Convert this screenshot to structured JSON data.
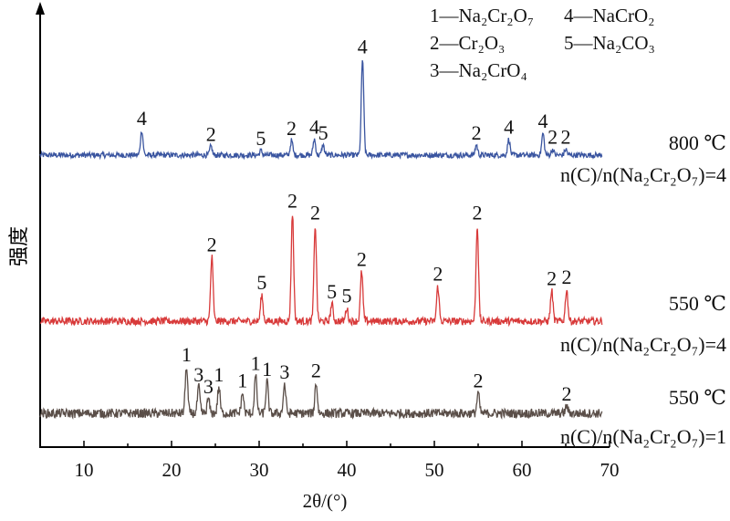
{
  "chart_data": {
    "type": "line",
    "title": "",
    "xlabel": "2θ/(°)",
    "ylabel": "强度",
    "xlim": [
      5,
      70
    ],
    "xticks": [
      "10",
      "20",
      "30",
      "40",
      "50",
      "60",
      "70"
    ],
    "grid": false,
    "legend_position": "top-right",
    "legend": [
      {
        "id": "1",
        "name": "Na₂Cr₂O₇"
      },
      {
        "id": "2",
        "name": "Cr₂O₃"
      },
      {
        "id": "3",
        "name": "Na₂CrO₄"
      },
      {
        "id": "4",
        "name": "NaCrO₂"
      },
      {
        "id": "5",
        "name": "Na₂CO₃"
      }
    ],
    "series": [
      {
        "name": "800 ℃ n(C)/n(Na₂Cr₂O₇)=4",
        "label_temp": "800 ℃",
        "label_ratio": "n(C)/n(Na₂Cr₂O₇)=4",
        "color": "#3a55a0",
        "peaks": [
          {
            "x": 16.6,
            "h": 0.85,
            "label": "4"
          },
          {
            "x": 24.5,
            "h": 0.3,
            "label": "2"
          },
          {
            "x": 30.2,
            "h": 0.15,
            "label": "5"
          },
          {
            "x": 33.7,
            "h": 0.5,
            "label": "2"
          },
          {
            "x": 36.3,
            "h": 0.55,
            "label": "4"
          },
          {
            "x": 37.3,
            "h": 0.35,
            "label": "5"
          },
          {
            "x": 41.8,
            "h": 3.3,
            "label": "4"
          },
          {
            "x": 54.8,
            "h": 0.35,
            "label": "2"
          },
          {
            "x": 58.5,
            "h": 0.55,
            "label": "4"
          },
          {
            "x": 62.4,
            "h": 0.75,
            "label": "4"
          },
          {
            "x": 63.5,
            "h": 0.2,
            "label": "2"
          },
          {
            "x": 65.0,
            "h": 0.2,
            "label": "2"
          }
        ]
      },
      {
        "name": "550 ℃ n(C)/n(Na₂Cr₂O₇)=4",
        "label_temp": "550 ℃",
        "label_ratio": "n(C)/n(Na₂Cr₂O₇)=4",
        "color": "#d83a3a",
        "peaks": [
          {
            "x": 24.6,
            "h": 2.2,
            "label": "2"
          },
          {
            "x": 30.3,
            "h": 0.9,
            "label": "5"
          },
          {
            "x": 33.8,
            "h": 3.7,
            "label": "2"
          },
          {
            "x": 36.4,
            "h": 3.3,
            "label": "2"
          },
          {
            "x": 38.3,
            "h": 0.6,
            "label": "5"
          },
          {
            "x": 40.0,
            "h": 0.45,
            "label": "5"
          },
          {
            "x": 41.7,
            "h": 1.7,
            "label": "2"
          },
          {
            "x": 50.4,
            "h": 1.2,
            "label": "2"
          },
          {
            "x": 54.9,
            "h": 3.3,
            "label": "2"
          },
          {
            "x": 63.4,
            "h": 1.05,
            "label": "2"
          },
          {
            "x": 65.1,
            "h": 1.1,
            "label": "2"
          }
        ]
      },
      {
        "name": "550 ℃ n(C)/n(Na₂Cr₂O₇)=1",
        "label_temp": "550 ℃",
        "label_ratio": "n(C)/n(Na₂Cr₂O₇)=1",
        "color": "#5a4e48",
        "peaks": [
          {
            "x": 21.7,
            "h": 1.6,
            "label": "1"
          },
          {
            "x": 23.1,
            "h": 0.9,
            "label": "3"
          },
          {
            "x": 24.2,
            "h": 0.5,
            "label": "3"
          },
          {
            "x": 25.4,
            "h": 0.9,
            "label": "1"
          },
          {
            "x": 28.1,
            "h": 0.7,
            "label": "1"
          },
          {
            "x": 29.6,
            "h": 1.3,
            "label": "1"
          },
          {
            "x": 30.9,
            "h": 1.1,
            "label": "1"
          },
          {
            "x": 32.9,
            "h": 1.0,
            "label": "3"
          },
          {
            "x": 36.5,
            "h": 1.05,
            "label": "2"
          },
          {
            "x": 55.0,
            "h": 0.7,
            "label": "2"
          },
          {
            "x": 65.1,
            "h": 0.25,
            "label": "2"
          }
        ]
      }
    ]
  }
}
